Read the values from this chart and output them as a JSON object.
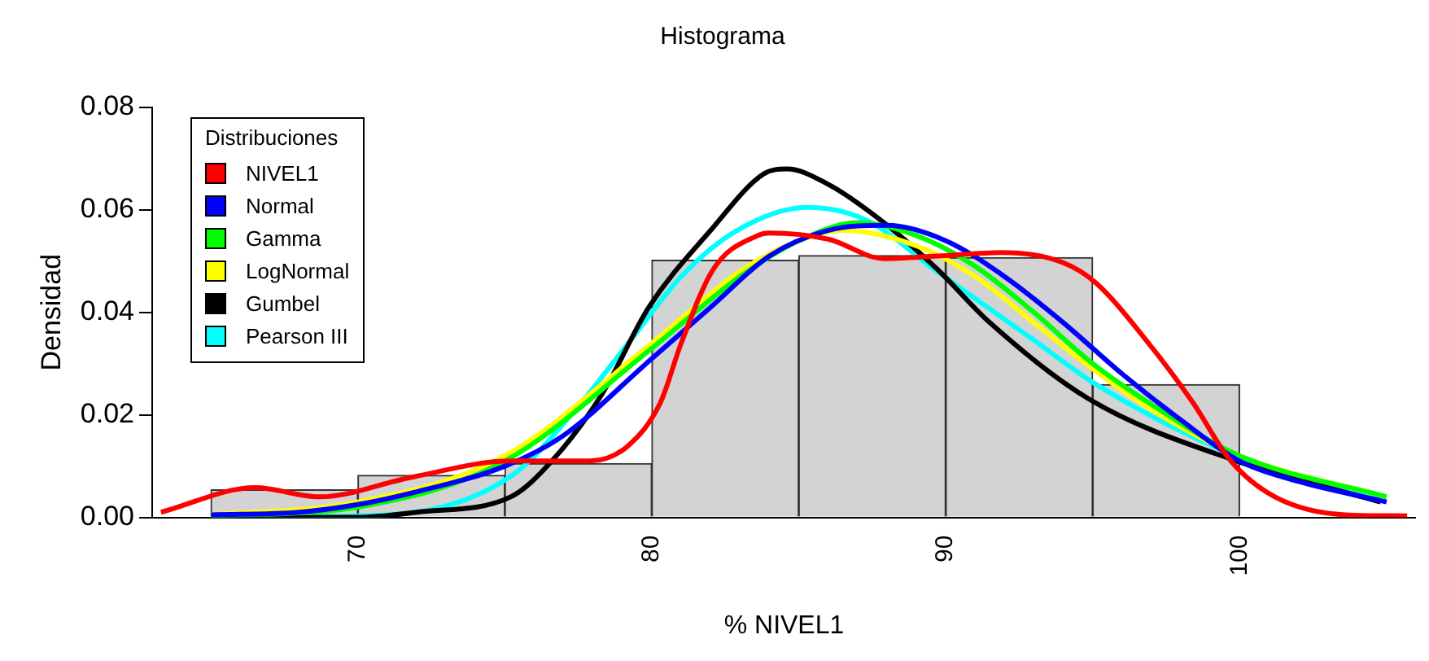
{
  "chart_data": {
    "type": "histogram",
    "title": "Histograma",
    "xlabel": "% NIVEL1",
    "ylabel": "Densidad",
    "legend_title": "Distribuciones",
    "legend": "top left",
    "grid": false,
    "color": "#d3d3d3",
    "bins": [
      65,
      70,
      75,
      80,
      85,
      90,
      95,
      100
    ],
    "values": [
      0.0054,
      0.0082,
      0.0105,
      0.0502,
      0.0511,
      0.0507,
      0.0259
    ],
    "xlim": [
      63,
      106
    ],
    "xticks": [
      70,
      80,
      90,
      100
    ],
    "ylim": [
      0,
      0.08
    ],
    "yticks": [
      {
        "value": 0,
        "label": "0.00"
      },
      {
        "value": 0.02,
        "label": "0.02"
      },
      {
        "value": 0.04,
        "label": "0.04"
      },
      {
        "value": 0.06,
        "label": "0.06"
      },
      {
        "value": 0.08,
        "label": "0.08"
      }
    ],
    "series": [
      {
        "name": "NIVEL1",
        "type": "line",
        "color": "#ff0000",
        "x": [
          63.3,
          66.5,
          68.7,
          71.8,
          75.2,
          77.9,
          79.2,
          80.3,
          81,
          82.1,
          83.6,
          84,
          86,
          87.9,
          89.7,
          91.9,
          94,
          95.1,
          96.9,
          98.4,
          99.7,
          101.2,
          103.6,
          105.7
        ],
        "values": [
          0.001,
          0.0058,
          0.004,
          0.0078,
          0.011,
          0.011,
          0.014,
          0.0225,
          0.034,
          0.0485,
          0.055,
          0.0555,
          0.0543,
          0.0505,
          0.051,
          0.0517,
          0.0497,
          0.0458,
          0.034,
          0.0225,
          0.011,
          0.004,
          0.0005,
          0.0003
        ]
      },
      {
        "name": "Normal",
        "type": "line",
        "color": "#0000ff",
        "x": [
          65,
          68,
          70,
          72,
          75,
          77,
          80,
          82,
          84,
          86,
          88,
          90,
          92,
          94,
          96,
          98,
          100,
          102,
          105
        ],
        "values": [
          0.0005,
          0.001,
          0.0025,
          0.005,
          0.01,
          0.016,
          0.031,
          0.041,
          0.051,
          0.056,
          0.057,
          0.054,
          0.047,
          0.038,
          0.028,
          0.019,
          0.011,
          0.007,
          0.003
        ]
      },
      {
        "name": "Gamma",
        "type": "line",
        "color": "#00ff00",
        "x": [
          65,
          70,
          75,
          80,
          83,
          85,
          87,
          89,
          91,
          93,
          95,
          97,
          100,
          105
        ],
        "values": [
          0.0003,
          0.002,
          0.011,
          0.033,
          0.047,
          0.054,
          0.0575,
          0.055,
          0.049,
          0.04,
          0.03,
          0.022,
          0.012,
          0.004
        ]
      },
      {
        "name": "LogNormal",
        "type": "line",
        "color": "#ffff00",
        "x": [
          65,
          70,
          75,
          80,
          83,
          85,
          86.5,
          89,
          91,
          93,
          95,
          97,
          100,
          105
        ],
        "values": [
          0.0005,
          0.003,
          0.012,
          0.034,
          0.048,
          0.054,
          0.056,
          0.053,
          0.047,
          0.038,
          0.029,
          0.021,
          0.012,
          0.004
        ]
      },
      {
        "name": "Gumbel",
        "type": "line",
        "color": "#000000",
        "x": [
          65,
          70,
          72,
          75.2,
          76.6,
          78.3,
          79.9,
          82,
          83.8,
          84.6,
          86,
          87.9,
          89.7,
          91.5,
          94.9,
          99.9,
          104.8
        ],
        "values": [
          0,
          0,
          0.001,
          0.004,
          0.011,
          0.024,
          0.041,
          0.056,
          0.067,
          0.068,
          0.065,
          0.0575,
          0.0485,
          0.038,
          0.023,
          0.011,
          0.003
        ]
      },
      {
        "name": "Pearson III",
        "type": "line",
        "color": "#00ffff",
        "x": [
          65,
          71,
          75.2,
          77.4,
          79.2,
          81,
          82.9,
          85.3,
          87.3,
          89.7,
          92.9,
          95.1,
          99.9,
          104.8
        ],
        "values": [
          0,
          0.0005,
          0.008,
          0.021,
          0.034,
          0.047,
          0.056,
          0.0605,
          0.058,
          0.048,
          0.035,
          0.026,
          0.012,
          0.004
        ]
      }
    ]
  }
}
